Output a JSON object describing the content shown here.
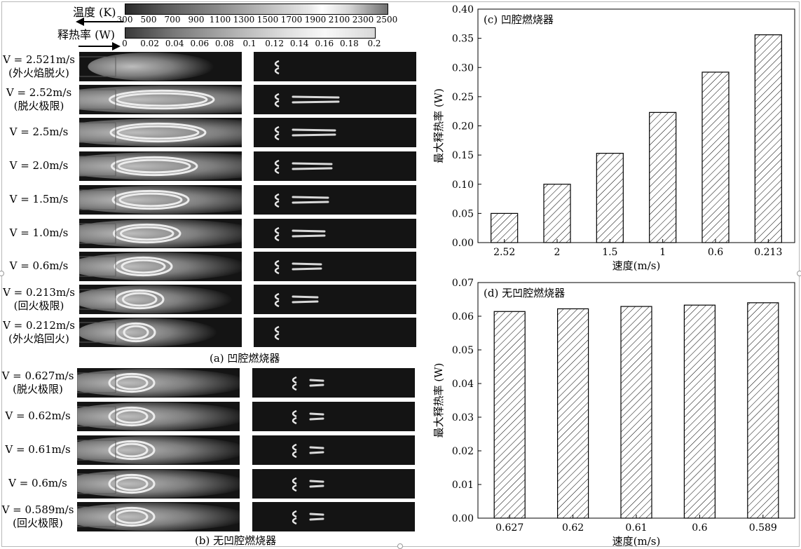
{
  "colorbars": {
    "temperature": {
      "label": "温度 (K)",
      "ticks": [
        "300",
        "500",
        "700",
        "900",
        "1100",
        "1300",
        "1500",
        "1700",
        "1900",
        "2100",
        "2300",
        "2500"
      ]
    },
    "heat_release": {
      "label": "释热率 (W)",
      "ticks": [
        "0",
        "0.02",
        "0.04",
        "0.06",
        "0.08",
        "0.1",
        "0.12",
        "0.14",
        "0.16",
        "0.18",
        "0.2"
      ]
    }
  },
  "panel_a": {
    "caption": "(a) 凹腔燃烧器",
    "rows": [
      {
        "line1": "V = 2.521m/s",
        "line2": "(外火焰脱火)"
      },
      {
        "line1": "V = 2.52m/s",
        "line2": "(脱火极限)"
      },
      {
        "line1": "V = 2.5m/s",
        "line2": ""
      },
      {
        "line1": "V = 2.0m/s",
        "line2": ""
      },
      {
        "line1": "V = 1.5m/s",
        "line2": ""
      },
      {
        "line1": "V = 1.0m/s",
        "line2": ""
      },
      {
        "line1": "V = 0.6m/s",
        "line2": ""
      },
      {
        "line1": "V = 0.213m/s",
        "line2": "(回火极限)"
      },
      {
        "line1": "V = 0.212m/s",
        "line2": "(外火焰回火)"
      }
    ]
  },
  "panel_b": {
    "caption": "(b) 无凹腔燃烧器",
    "rows": [
      {
        "line1": "V = 0.627m/s",
        "line2": "(脱火极限)"
      },
      {
        "line1": "V = 0.62m/s",
        "line2": ""
      },
      {
        "line1": "V = 0.61m/s",
        "line2": ""
      },
      {
        "line1": "V = 0.6m/s",
        "line2": ""
      },
      {
        "line1": "V = 0.589m/s",
        "line2": "(回火极限)"
      }
    ]
  },
  "chart_data": [
    {
      "type": "bar",
      "title": "(c) 凹腔燃烧器",
      "xlabel": "速度(m/s)",
      "ylabel": "最大释热率 (W)",
      "categories": [
        "2.52",
        "2",
        "1.5",
        "1",
        "0.6",
        "0.213"
      ],
      "values": [
        0.05,
        0.1,
        0.153,
        0.223,
        0.292,
        0.356
      ],
      "ylim": [
        0,
        0.4
      ],
      "yticks": [
        "0.00",
        "0.05",
        "0.10",
        "0.15",
        "0.20",
        "0.25",
        "0.30",
        "0.35",
        "0.40"
      ],
      "pattern": "diagonal-hatch",
      "grid": false
    },
    {
      "type": "bar",
      "title": "(d) 无凹腔燃烧器",
      "xlabel": "速度(m/s)",
      "ylabel": "最大释热率 (W)",
      "categories": [
        "0.627",
        "0.62",
        "0.61",
        "0.6",
        "0.589"
      ],
      "values": [
        0.0614,
        0.0622,
        0.0629,
        0.0633,
        0.064
      ],
      "ylim": [
        0,
        0.07
      ],
      "yticks": [
        "0.00",
        "0.01",
        "0.02",
        "0.03",
        "0.04",
        "0.05",
        "0.06",
        "0.07"
      ],
      "pattern": "diagonal-hatch",
      "grid": false
    }
  ],
  "colors": {
    "background": "#ffffff",
    "panel_dark": "#141414",
    "axis": "#000000"
  }
}
